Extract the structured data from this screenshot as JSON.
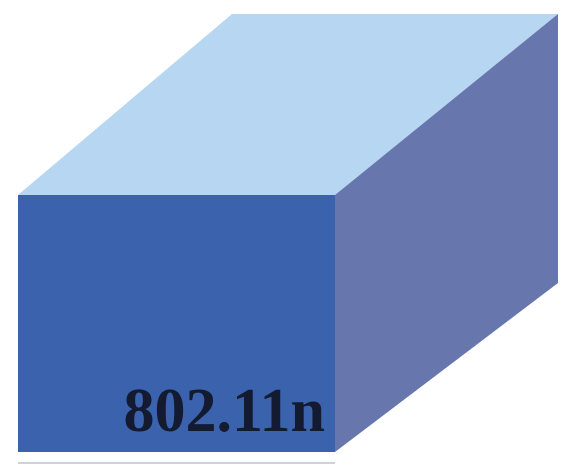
{
  "cube": {
    "label": "802.11n",
    "colors": {
      "front": "#3a62ad",
      "top": "#b6d6f2",
      "side": "#6777ad",
      "text": "#141a30",
      "background": "#ffffff"
    }
  }
}
